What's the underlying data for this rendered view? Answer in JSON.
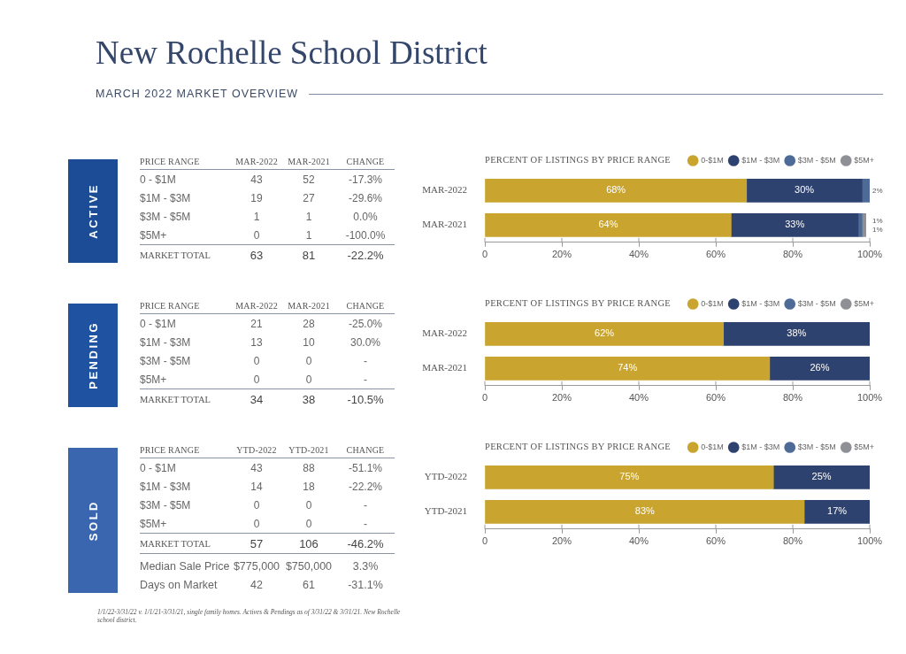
{
  "chart_data": [
    {
      "type": "other",
      "title": "New Rochelle School District",
      "subtitle": "MARCH 2022 MARKET OVERVIEW"
    },
    {
      "type": "other",
      "title": "ACTIVE",
      "ylabel": "PRICE RANGE",
      "categories": [
        "0 - $1M",
        "$1M - $3M",
        "$3M - $5M",
        "$5M+",
        "MARKET TOTAL"
      ],
      "data_labels": true,
      "series": [
        {
          "name": "MAR-2022",
          "values": [
            43,
            19,
            1,
            0,
            63
          ]
        },
        {
          "name": "MAR-2021",
          "values": [
            52,
            27,
            1,
            1,
            81
          ]
        },
        {
          "name": "CHANGE",
          "values": [
            -17.3,
            -29.6,
            0.0,
            -100.0,
            -22.2
          ],
          "value_labels": [
            "-17.3%",
            "-29.6%",
            "0.0%",
            "-100.0%",
            "-22.2%"
          ]
        }
      ]
    },
    {
      "type": "bar",
      "orientation": "horizontal",
      "stacked": true,
      "title": "PERCENT OF LISTINGS BY PRICE RANGE",
      "categories": [
        "MAR-2022",
        "MAR-2021"
      ],
      "series": [
        {
          "name": "0-$1M",
          "color": "#c9a42e",
          "values": [
            68,
            64
          ],
          "value_labels": [
            "68%",
            "64%"
          ]
        },
        {
          "name": "$1M - $3M",
          "color": "#2e4270",
          "values": [
            30,
            33
          ],
          "value_labels": [
            "30%",
            "33%"
          ]
        },
        {
          "name": "$3M - $5M",
          "color": "#4e6b98",
          "values": [
            2,
            1
          ],
          "value_labels": [
            "2%",
            "1%"
          ]
        },
        {
          "name": "$5M+",
          "color": "#8e9096",
          "values": [
            0,
            1
          ],
          "value_labels": [
            null,
            "1%"
          ]
        }
      ],
      "xlim": [
        0,
        100
      ],
      "xticks": [
        {
          "value": 0,
          "label": "0"
        },
        {
          "value": 20,
          "label": "20%"
        },
        {
          "value": 40,
          "label": "40%"
        },
        {
          "value": 60,
          "label": "60%"
        },
        {
          "value": 80,
          "label": "80%"
        },
        {
          "value": 100,
          "label": "100%"
        }
      ],
      "legend": "top right"
    },
    {
      "type": "other",
      "title": "PENDING",
      "ylabel": "PRICE RANGE",
      "categories": [
        "0 - $1M",
        "$1M - $3M",
        "$3M - $5M",
        "$5M+",
        "MARKET TOTAL"
      ],
      "data_labels": true,
      "series": [
        {
          "name": "MAR-2022",
          "values": [
            21,
            13,
            0,
            0,
            34
          ]
        },
        {
          "name": "MAR-2021",
          "values": [
            28,
            10,
            0,
            0,
            38
          ]
        },
        {
          "name": "CHANGE",
          "values": [
            -25.0,
            30.0,
            null,
            null,
            -10.5
          ],
          "value_labels": [
            "-25.0%",
            "30.0%",
            "-",
            "-",
            "-10.5%"
          ]
        }
      ]
    },
    {
      "type": "bar",
      "orientation": "horizontal",
      "stacked": true,
      "title": "PERCENT OF LISTINGS BY PRICE RANGE",
      "categories": [
        "MAR-2022",
        "MAR-2021"
      ],
      "series": [
        {
          "name": "0-$1M",
          "color": "#c9a42e",
          "values": [
            62,
            74
          ],
          "value_labels": [
            "62%",
            "74%"
          ]
        },
        {
          "name": "$1M - $3M",
          "color": "#2e4270",
          "values": [
            38,
            26
          ],
          "value_labels": [
            "38%",
            "26%"
          ]
        },
        {
          "name": "$3M - $5M",
          "color": "#4e6b98",
          "values": [
            0,
            0
          ],
          "value_labels": [
            null,
            null
          ]
        },
        {
          "name": "$5M+",
          "color": "#8e9096",
          "values": [
            0,
            0
          ],
          "value_labels": [
            null,
            null
          ]
        }
      ],
      "xlim": [
        0,
        100
      ],
      "xticks": [
        {
          "value": 0,
          "label": "0"
        },
        {
          "value": 20,
          "label": "20%"
        },
        {
          "value": 40,
          "label": "40%"
        },
        {
          "value": 60,
          "label": "60%"
        },
        {
          "value": 80,
          "label": "80%"
        },
        {
          "value": 100,
          "label": "100%"
        }
      ],
      "legend": "top right"
    },
    {
      "type": "other",
      "title": "SOLD",
      "ylabel": "PRICE RANGE",
      "categories": [
        "0 - $1M",
        "$1M - $3M",
        "$3M - $5M",
        "$5M+",
        "MARKET TOTAL",
        "Median Sale Price",
        "Days on Market"
      ],
      "series": [
        {
          "name": "YTD-2022",
          "values": [
            43,
            14,
            0,
            0,
            57,
            775000,
            42
          ],
          "value_labels": [
            "43",
            "14",
            "0",
            "0",
            "57",
            "$775,000",
            "42"
          ]
        },
        {
          "name": "YTD-2021",
          "values": [
            88,
            18,
            0,
            0,
            106,
            750000,
            61
          ],
          "value_labels": [
            "88",
            "18",
            "0",
            "0",
            "106",
            "$750,000",
            "61"
          ]
        },
        {
          "name": "CHANGE",
          "values": [
            -51.1,
            -22.2,
            null,
            null,
            -46.2,
            3.3,
            -31.1
          ],
          "value_labels": [
            "-51.1%",
            "-22.2%",
            "-",
            "-",
            "-46.2%",
            "3.3%",
            "-31.1%"
          ]
        }
      ],
      "annotations": [
        "1/1/22-3/31/22 v. 1/1/21-3/31/21, single family homes. Actives & Pendings as of 3/31/22 & 3/31/21. New Rochelle school district."
      ]
    },
    {
      "type": "bar",
      "orientation": "horizontal",
      "stacked": true,
      "title": "PERCENT OF LISTINGS BY PRICE RANGE",
      "categories": [
        "YTD-2022",
        "YTD-2021"
      ],
      "series": [
        {
          "name": "0-$1M",
          "color": "#c9a42e",
          "values": [
            75,
            83
          ],
          "value_labels": [
            "75%",
            "83%"
          ]
        },
        {
          "name": "$1M - $3M",
          "color": "#2e4270",
          "values": [
            25,
            17
          ],
          "value_labels": [
            "25%",
            "17%"
          ]
        },
        {
          "name": "$3M - $5M",
          "color": "#4e6b98",
          "values": [
            0,
            0
          ],
          "value_labels": [
            null,
            null
          ]
        },
        {
          "name": "$5M+",
          "color": "#8e9096",
          "values": [
            0,
            0
          ],
          "value_labels": [
            null,
            null
          ]
        }
      ],
      "xlim": [
        0,
        100
      ],
      "xticks": [
        {
          "value": 0,
          "label": "0"
        },
        {
          "value": 20,
          "label": "20%"
        },
        {
          "value": 40,
          "label": "40%"
        },
        {
          "value": 60,
          "label": "60%"
        },
        {
          "value": 80,
          "label": "80%"
        },
        {
          "value": 100,
          "label": "100%"
        }
      ],
      "legend": "top right"
    }
  ]
}
